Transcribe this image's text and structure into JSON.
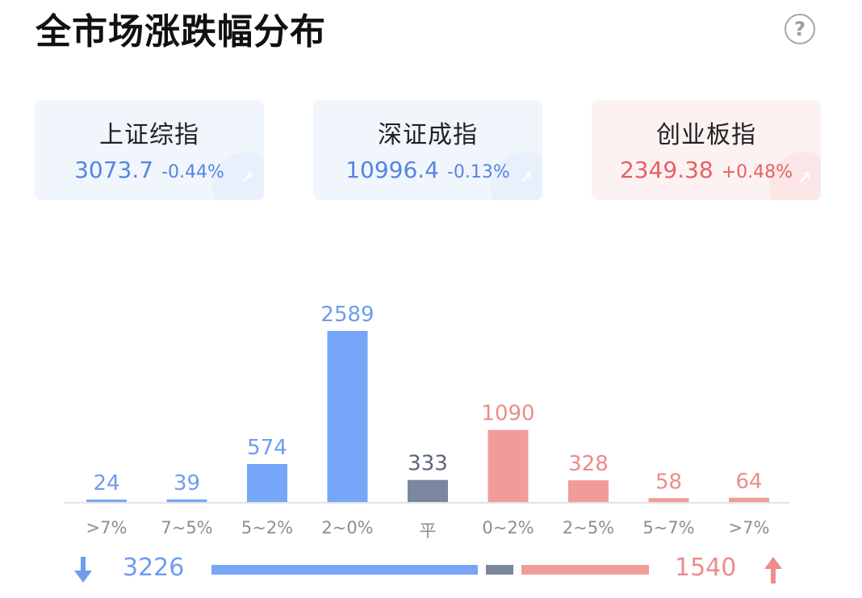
{
  "title": "全市场涨跌幅分布",
  "help_icon": "question-circle-icon",
  "help_glyph": "?",
  "indices": [
    {
      "name": "上证综指",
      "value": "3073.7",
      "change": "-0.44%",
      "trend": "down"
    },
    {
      "name": "深证成指",
      "value": "10996.4",
      "change": "-0.13%",
      "trend": "down"
    },
    {
      "name": "创业板指",
      "value": "2349.38",
      "change": "+0.48%",
      "trend": "up"
    }
  ],
  "colors": {
    "fall": "#77a6f8",
    "flat": "#7a879f",
    "rise": "#f09d9a",
    "fall_text": "#6e9cf0",
    "flat_text": "#5c6578",
    "rise_text": "#ec8c8c"
  },
  "chart_data": {
    "type": "bar",
    "categories": [
      ">7%",
      "7~5%",
      "5~2%",
      "2~0%",
      "平",
      "0~2%",
      "2~5%",
      "5~7%",
      ">7%"
    ],
    "values": [
      24,
      39,
      574,
      2589,
      333,
      1090,
      328,
      58,
      64
    ],
    "groups": [
      "fall",
      "fall",
      "fall",
      "fall",
      "flat",
      "rise",
      "rise",
      "rise",
      "rise"
    ],
    "ylim": [
      0,
      2589
    ]
  },
  "summary": {
    "fall_total": "3226",
    "rise_total": "1540",
    "flat_total": 333,
    "down_icon": "arrow-down-icon",
    "up_icon": "arrow-up-icon"
  }
}
